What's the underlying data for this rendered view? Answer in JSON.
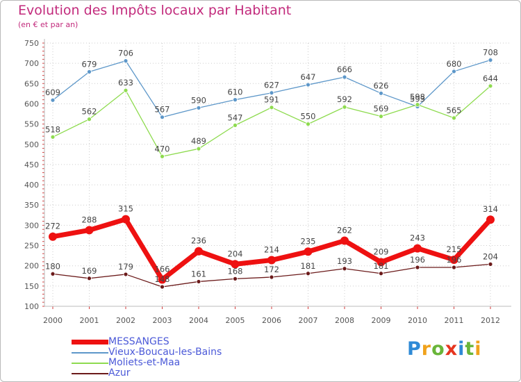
{
  "title": "Evolution des Impôts locaux par Habitant",
  "subtitle": "(en € et par an)",
  "logo": {
    "text": "Proxiti",
    "letters": [
      {
        "ch": "P",
        "color": "#2f8ad6"
      },
      {
        "ch": "r",
        "color": "#f0a21c"
      },
      {
        "ch": "o",
        "color": "#69b539"
      },
      {
        "ch": "x",
        "color": "#e6351f"
      },
      {
        "ch": "i",
        "color": "#2f8ad6"
      },
      {
        "ch": "t",
        "color": "#69b539"
      },
      {
        "ch": "i",
        "color": "#f0a21c"
      }
    ]
  },
  "chart_data": {
    "type": "line",
    "title": "Evolution des Impôts locaux par Habitant",
    "subtitle": "(en € et par an)",
    "xlabel": "",
    "ylabel": "",
    "x": [
      "2000",
      "2001",
      "2002",
      "2003",
      "2004",
      "2005",
      "2006",
      "2007",
      "2008",
      "2009",
      "2010",
      "2011",
      "2012"
    ],
    "ylim": [
      100,
      750
    ],
    "yticks": [
      100,
      150,
      200,
      250,
      300,
      350,
      400,
      450,
      500,
      550,
      600,
      650,
      700,
      750
    ],
    "grid": "horizontal and vertical dotted",
    "legend_position": "bottom-left",
    "series": [
      {
        "name": "Vieux-Boucau-les-Bains",
        "color": "#5d97c9",
        "values": [
          609,
          679,
          706,
          567,
          590,
          610,
          627,
          647,
          666,
          626,
          593,
          680,
          708
        ]
      },
      {
        "name": "Moliets-et-Maa",
        "color": "#8edb4f",
        "values": [
          518,
          562,
          633,
          470,
          489,
          547,
          591,
          550,
          592,
          569,
          598,
          565,
          644
        ]
      },
      {
        "name": "MESSANGES",
        "color": "#ee1111",
        "bold": true,
        "values": [
          272,
          288,
          315,
          166,
          236,
          204,
          214,
          235,
          262,
          209,
          243,
          215,
          314
        ]
      },
      {
        "name": "Azur",
        "color": "#6b1a1a",
        "values": [
          180,
          169,
          179,
          148,
          161,
          168,
          172,
          181,
          193,
          181,
          196,
          196,
          204
        ]
      }
    ],
    "legend_order": [
      "MESSANGES",
      "Vieux-Boucau-les-Bains",
      "Moliets-et-Maa",
      "Azur"
    ]
  }
}
